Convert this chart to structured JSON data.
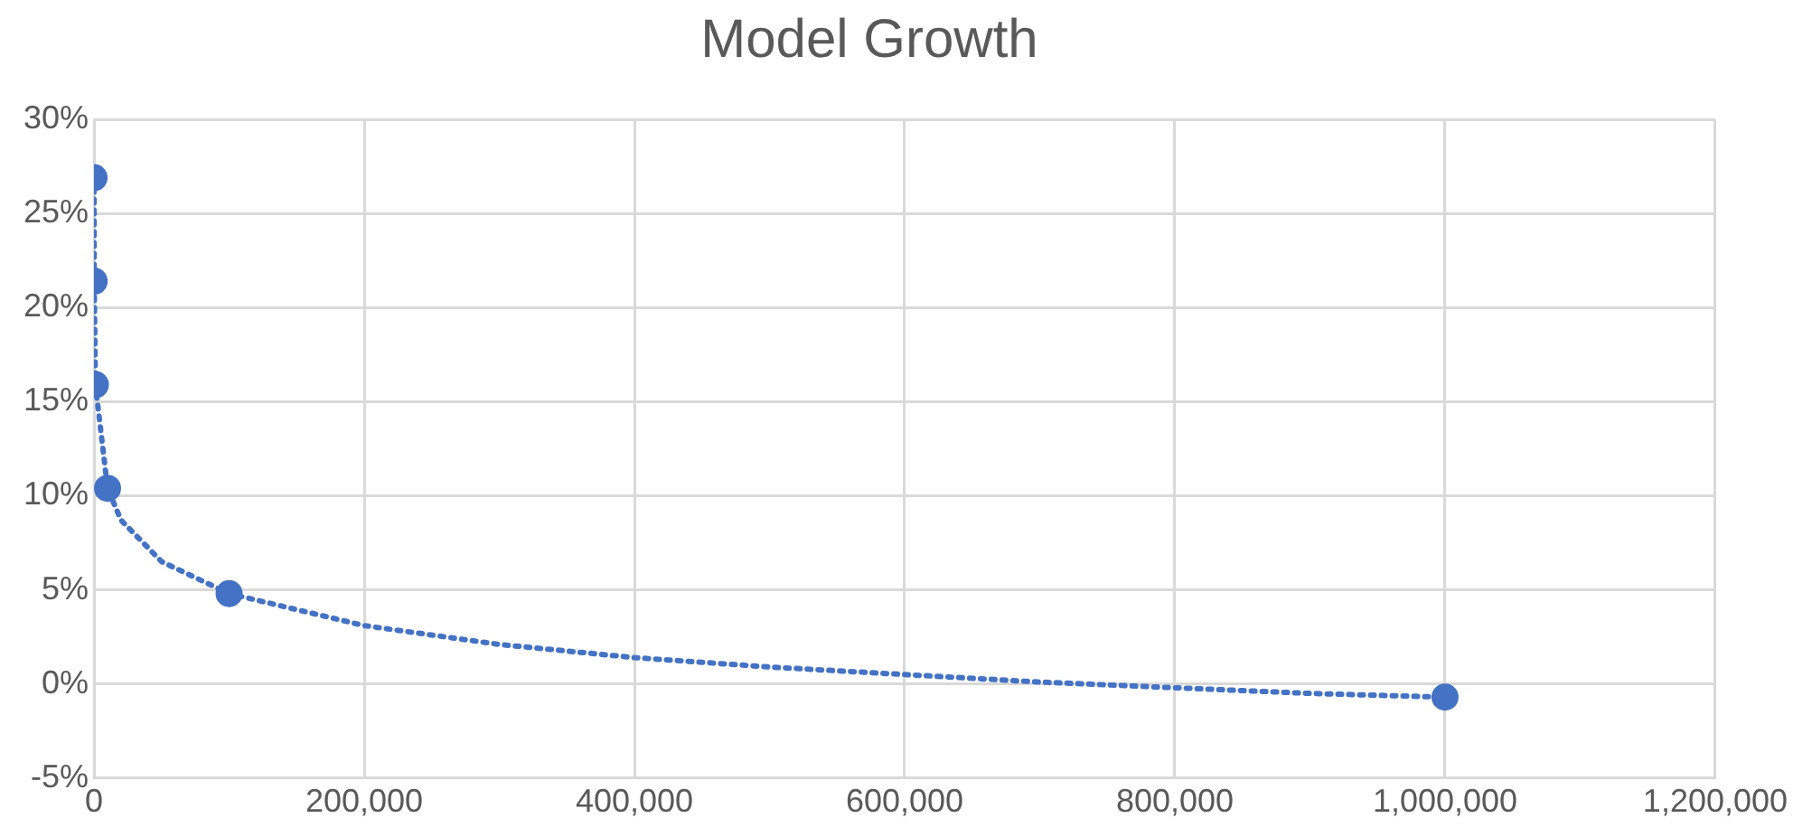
{
  "chart_data": {
    "type": "scatter",
    "title": "Model Growth",
    "xlim": [
      0,
      1200000
    ],
    "xticks": [
      0,
      {
        "value": 200000,
        "label": "200,000"
      },
      {
        "value": 400000,
        "label": "400,000"
      },
      {
        "value": 600000,
        "label": "600,000"
      },
      {
        "value": 800000,
        "label": "800,000"
      },
      {
        "value": 1000000,
        "label": "1,000,000"
      },
      {
        "value": 1200000,
        "label": "1,200,000"
      }
    ],
    "ylim": [
      -5,
      30
    ],
    "yticks": [
      {
        "value": -5,
        "label": "-5%"
      },
      {
        "value": 0,
        "label": "0%"
      },
      {
        "value": 5,
        "label": "5%"
      },
      {
        "value": 10,
        "label": "10%"
      },
      {
        "value": 15,
        "label": "15%"
      },
      {
        "value": 20,
        "label": "20%"
      },
      {
        "value": 25,
        "label": "25%"
      },
      {
        "value": 30,
        "label": "30%"
      }
    ],
    "grid": true,
    "legend": false,
    "series": [
      {
        "type": "scatter",
        "color": "#4472c4",
        "marker": "circle",
        "x": [
          10,
          100,
          1000,
          10000,
          100000,
          1000000
        ],
        "values": [
          26.9,
          21.4,
          15.9,
          10.4,
          4.8,
          -0.7
        ]
      },
      {
        "type": "line",
        "color": "#4472c4",
        "marker": "none",
        "line_style": "dotted",
        "x": [
          10,
          100,
          1000,
          10000,
          20000,
          50000,
          100000,
          200000,
          300000,
          400000,
          500000,
          600000,
          700000,
          800000,
          900000,
          1000000
        ],
        "values": [
          26.9,
          21.4,
          15.9,
          10.4,
          8.7,
          6.5,
          4.8,
          3.1,
          2.1,
          1.4,
          0.9,
          0.5,
          0.1,
          -0.2,
          -0.5,
          -0.7
        ]
      }
    ]
  }
}
